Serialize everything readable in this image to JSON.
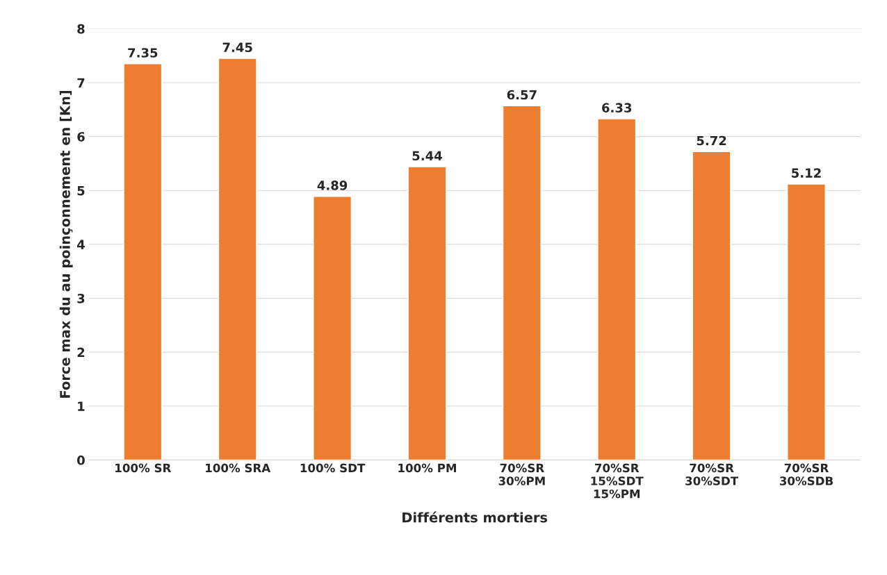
{
  "chart_data": {
    "type": "bar",
    "categories": [
      "100% SR",
      "100% SRA",
      "100% SDT",
      "100% PM",
      "70%SR\n30%PM",
      "70%SR\n15%SDT\n15%PM",
      "70%SR\n30%SDT",
      "70%SR\n30%SDB"
    ],
    "values": [
      7.35,
      7.45,
      4.89,
      5.44,
      6.57,
      6.33,
      5.72,
      5.12
    ],
    "color": "#ed7d31",
    "xlabel": "Différents mortiers",
    "ylabel": "Force max du au poinçonnement en [Kn]",
    "ylim": [
      0,
      8
    ],
    "yticks": [
      0,
      1,
      2,
      3,
      4,
      5,
      6,
      7,
      8
    ],
    "grid": "y",
    "data_labels": true
  }
}
